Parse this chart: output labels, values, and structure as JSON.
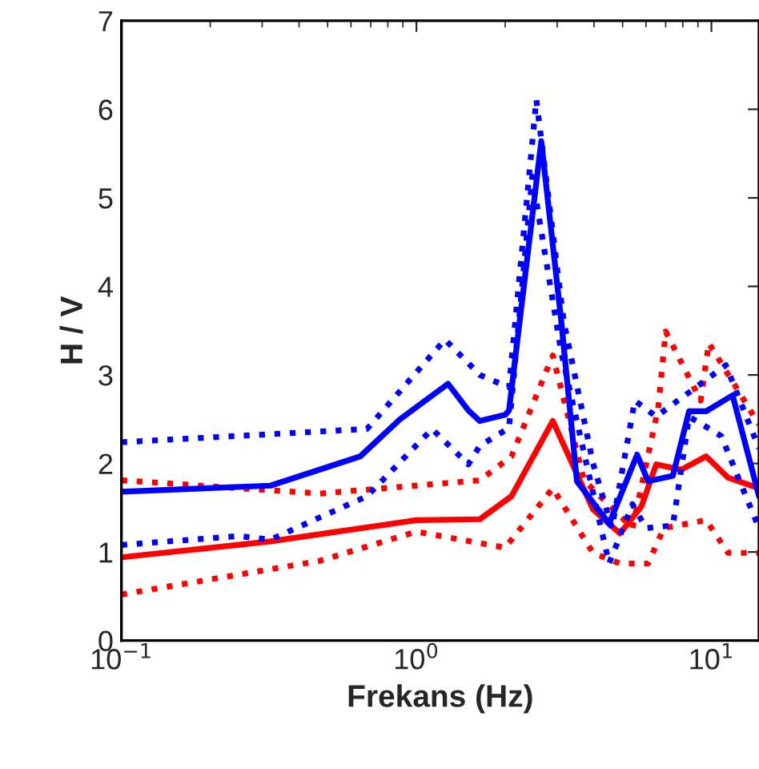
{
  "chart_data": {
    "type": "line",
    "xlabel": "Frekans (Hz)",
    "ylabel": "H / V",
    "log": "x",
    "grid": false,
    "legend": false,
    "xlim": [
      0.1,
      14.5
    ],
    "ylim": [
      0,
      7
    ],
    "xticks": [
      {
        "value": 0.1,
        "label": "10$^{−1}$"
      },
      {
        "value": 1,
        "label": "10$^{0}$"
      },
      {
        "value": 10,
        "label": "10$^{1}$"
      }
    ],
    "yticks": [
      0,
      1,
      2,
      3,
      4,
      5,
      6,
      7
    ],
    "series": [
      {
        "color": "#ff0000",
        "line_style": "dotted",
        "x": [
          0.1,
          0.47,
          1.0,
          2.0,
          2.9,
          3.97,
          4.9,
          6.1,
          6.9,
          9.6,
          11.4,
          14.5
        ],
        "values": [
          0.52,
          0.9,
          1.23,
          1.05,
          1.72,
          0.99,
          0.87,
          0.87,
          1.27,
          1.36,
          0.99,
          0.99
        ]
      },
      {
        "color": "#ff0000",
        "line_style": "dotted",
        "x": [
          0.1,
          0.47,
          1.64,
          2.1,
          2.9,
          3.7,
          5.4,
          6.6,
          7.0,
          9.2,
          9.8,
          14.5
        ],
        "values": [
          1.81,
          1.66,
          1.81,
          2.08,
          3.22,
          1.81,
          1.27,
          2.62,
          3.49,
          2.71,
          3.36,
          2.44
        ]
      },
      {
        "color": "#ff0000",
        "line_style": "solid",
        "x": [
          0.1,
          0.32,
          1.0,
          1.64,
          2.1,
          2.9,
          3.97,
          4.9,
          5.8,
          6.5,
          7.9,
          9.6,
          11.4,
          14.5
        ],
        "values": [
          0.94,
          1.12,
          1.36,
          1.37,
          1.63,
          2.48,
          1.48,
          1.21,
          1.52,
          1.99,
          1.93,
          2.08,
          1.84,
          1.72
        ]
      },
      {
        "color": "#0000ff",
        "line_style": "dotted",
        "x": [
          0.1,
          0.25,
          0.32,
          0.68,
          1.13,
          1.5,
          1.64,
          2.06,
          2.47,
          3.1,
          4.5,
          5.4,
          6.0,
          7.4,
          8.4,
          10.8,
          14.5
        ],
        "values": [
          1.08,
          1.18,
          1.14,
          1.63,
          2.39,
          1.99,
          2.2,
          2.4,
          5.24,
          3.25,
          0.87,
          1.54,
          1.27,
          1.3,
          2.53,
          2.31,
          1.27
        ]
      },
      {
        "color": "#0000ff",
        "line_style": "dotted",
        "x": [
          0.1,
          0.68,
          1.25,
          1.64,
          2.06,
          2.55,
          3.16,
          3.97,
          4.6,
          5.5,
          6.5,
          11.2,
          14.5
        ],
        "values": [
          2.24,
          2.39,
          3.4,
          3.0,
          2.86,
          6.11,
          3.6,
          2.0,
          1.27,
          2.71,
          2.53,
          3.11,
          2.17
        ]
      },
      {
        "color": "#0000ff",
        "line_style": "solid",
        "x": [
          0.1,
          0.32,
          0.645,
          0.88,
          1.28,
          1.5,
          1.64,
          2.0,
          2.06,
          2.65,
          3.1,
          3.5,
          4.5,
          5.6,
          6.1,
          7.4,
          8.4,
          9.6,
          11.8,
          14.5
        ],
        "values": [
          1.68,
          1.75,
          2.08,
          2.5,
          2.9,
          2.6,
          2.48,
          2.55,
          2.6,
          5.64,
          3.6,
          1.8,
          1.32,
          2.1,
          1.8,
          1.86,
          2.59,
          2.59,
          2.77,
          1.63
        ]
      }
    ]
  }
}
